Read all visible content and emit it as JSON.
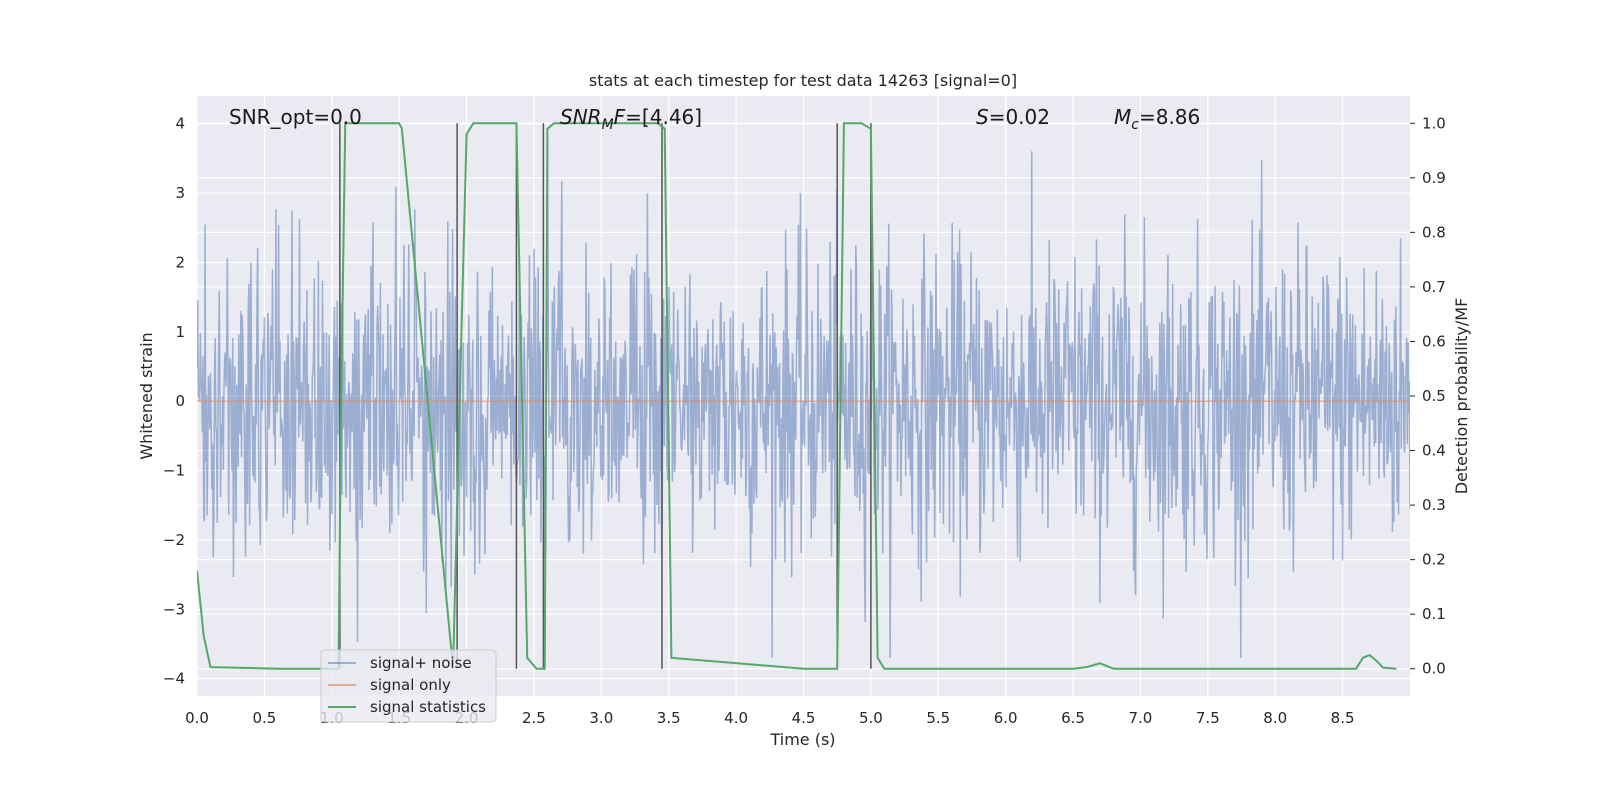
{
  "chart_data": {
    "type": "line",
    "title": "stats at each timestep for test data 14263 [signal=0]",
    "xlabel": "Time (s)",
    "ylabel_left": "Whitened strain",
    "ylabel_right": "Detection probability/MF",
    "xlim": [
      0.0,
      9.0
    ],
    "ylim_left": [
      -4.25,
      4.4
    ],
    "ylim_right": [
      -0.05,
      1.05
    ],
    "xticks": [
      "0.0",
      "0.5",
      "1.0",
      "1.5",
      "2.0",
      "2.5",
      "3.0",
      "3.5",
      "4.0",
      "4.5",
      "5.0",
      "5.5",
      "6.0",
      "6.5",
      "7.0",
      "7.5",
      "8.0",
      "8.5"
    ],
    "yticks_left": [
      "4",
      "3",
      "2",
      "1",
      "0",
      "−1",
      "−2",
      "−3",
      "−4"
    ],
    "yticks_right": [
      "1.0",
      "0.9",
      "0.8",
      "0.7",
      "0.6",
      "0.5",
      "0.4",
      "0.3",
      "0.2",
      "0.1",
      "0.0"
    ],
    "grid": true,
    "legend_position": "lower-left",
    "legend": [
      "signal+ noise",
      "signal only",
      "signal statistics"
    ],
    "colors": {
      "noise": "#4c72b0",
      "signal_only": "#dd8452",
      "statistics": "#55a868",
      "boundary": "#555555",
      "background": "#eaeaf2",
      "grid": "#ffffff"
    },
    "annotations": {
      "snr_opt": "SNR_opt=0.0",
      "snr_mf_sym": "SNR",
      "snr_mf_sub": "M",
      "snr_mf_rest": "F",
      "snr_mf_value": "=[4.46]",
      "s_sym": "S",
      "s_value": "=0.02",
      "mc_sym": "M",
      "mc_sub": "c",
      "mc_value": "=8.86"
    },
    "series": [
      {
        "name": "signal+ noise",
        "axis": "left",
        "description_values": "white noise, std ~1.1, peaks to about ±3.8",
        "std": 1.1,
        "n_points": 1800
      },
      {
        "name": "signal only",
        "axis": "left",
        "x": [
          0.0,
          9.0
        ],
        "y": [
          0.0,
          0.0
        ]
      },
      {
        "name": "signal statistics",
        "axis": "right",
        "x": [
          0.0,
          0.05,
          0.1,
          0.6,
          1.05,
          1.07,
          1.1,
          1.15,
          1.5,
          1.52,
          1.9,
          1.95,
          2.0,
          2.05,
          2.37,
          2.45,
          2.52,
          2.58,
          2.6,
          2.65,
          3.42,
          3.47,
          3.52,
          4.5,
          4.75,
          4.8,
          4.93,
          5.0,
          5.05,
          5.1,
          5.5,
          6.0,
          6.5,
          6.6,
          6.7,
          6.8,
          7.5,
          8.0,
          8.6,
          8.65,
          8.7,
          8.75,
          8.8,
          8.9
        ],
        "y": [
          0.18,
          0.06,
          0.003,
          0.0,
          0.0,
          0.5,
          1.0,
          1.0,
          1.0,
          0.99,
          0.0,
          0.5,
          0.98,
          1.0,
          1.0,
          0.02,
          0.0,
          0.0,
          0.99,
          1.0,
          1.0,
          0.99,
          0.02,
          0.0,
          0.0,
          1.0,
          1.0,
          0.99,
          0.02,
          0.0,
          0.0,
          0.0,
          0.0,
          0.003,
          0.01,
          0.0,
          0.0,
          0.0,
          0.0,
          0.02,
          0.025,
          0.015,
          0.002,
          0.0
        ]
      }
    ],
    "boundary_lines_x": [
      1.06,
      1.93,
      2.37,
      2.57,
      3.45,
      4.75,
      5.0
    ]
  }
}
